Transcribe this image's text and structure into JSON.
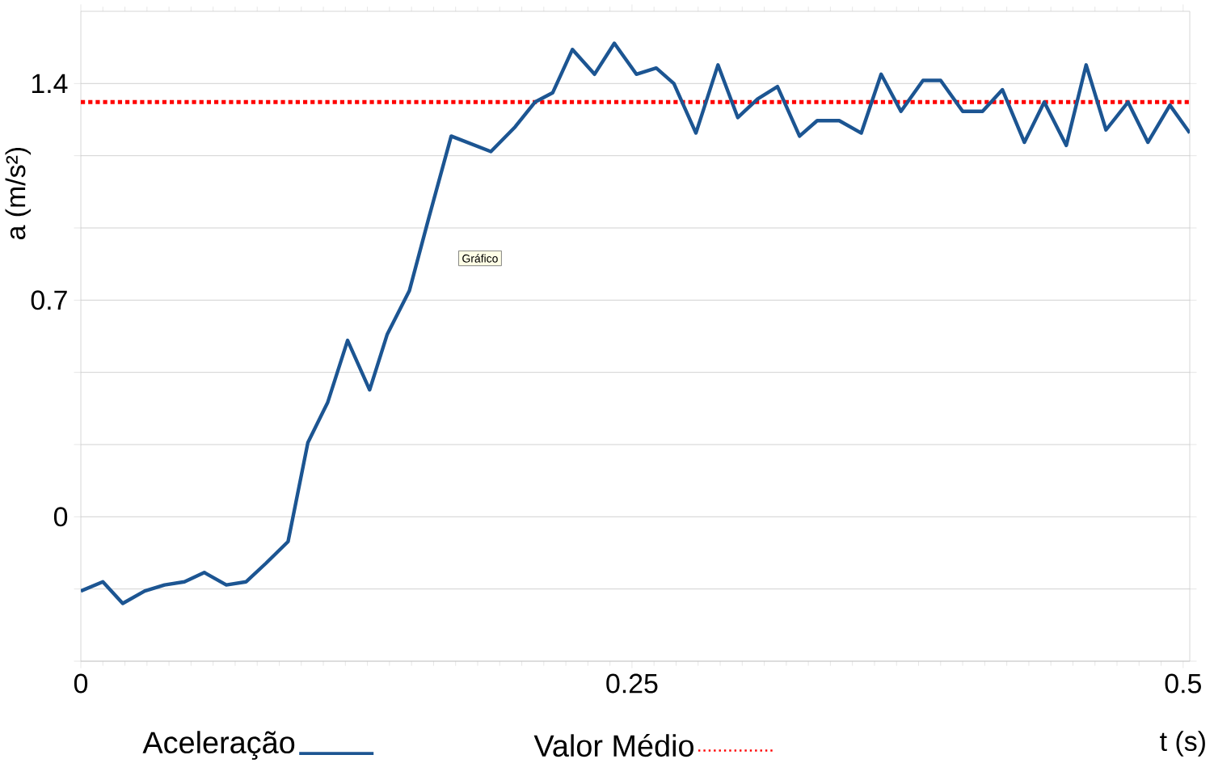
{
  "chart_data": {
    "type": "line",
    "xlabel": "t (s)",
    "ylabel": "a (m/s²)",
    "xlim": [
      0,
      0.503
    ],
    "ylim": [
      -0.4667,
      1.6333
    ],
    "xticks": [
      0,
      0.25,
      0.5
    ],
    "yticks": [
      {
        "value": -0.4667,
        "label": null
      },
      {
        "value": -0.2333,
        "label": null
      },
      0,
      {
        "value": 0.2333,
        "label": null
      },
      {
        "value": 0.4667,
        "label": null
      },
      0.7,
      {
        "value": 0.9333,
        "label": null
      },
      {
        "value": 1.1667,
        "label": null
      },
      1.4
    ],
    "grid": "y",
    "legend": "bottom",
    "line_style": "solid",
    "marker": "none",
    "series": [
      {
        "name": "Aceleração",
        "color": "#1c5592",
        "x": [
          0,
          0.01,
          0.019,
          0.029,
          0.038,
          0.047,
          0.056,
          0.066,
          0.075,
          0.084,
          0.094,
          0.103,
          0.112,
          0.121,
          0.131,
          0.139,
          0.149,
          0.158,
          0.168,
          0.186,
          0.197,
          0.206,
          0.214,
          0.223,
          0.233,
          0.242,
          0.252,
          0.261,
          0.269,
          0.279,
          0.289,
          0.298,
          0.307,
          0.316,
          0.326,
          0.334,
          0.344,
          0.354,
          0.363,
          0.372,
          0.382,
          0.39,
          0.4,
          0.409,
          0.418,
          0.428,
          0.437,
          0.447,
          0.456,
          0.465,
          0.475,
          0.484,
          0.494,
          0.503
        ],
        "values": [
          -0.24,
          -0.21,
          -0.28,
          -0.24,
          -0.22,
          -0.21,
          -0.18,
          -0.22,
          -0.21,
          -0.15,
          -0.08,
          0.24,
          0.37,
          0.57,
          0.41,
          0.59,
          0.73,
          0.97,
          1.23,
          1.18,
          1.26,
          1.34,
          1.37,
          1.51,
          1.43,
          1.53,
          1.43,
          1.45,
          1.4,
          1.24,
          1.46,
          1.29,
          1.35,
          1.39,
          1.23,
          1.28,
          1.28,
          1.24,
          1.43,
          1.31,
          1.41,
          1.41,
          1.31,
          1.31,
          1.38,
          1.21,
          1.34,
          1.2,
          1.46,
          1.25,
          1.34,
          1.21,
          1.33,
          1.24
        ]
      }
    ],
    "ref_lines": [
      {
        "axis": "y",
        "value": 1.34,
        "label": "Valor Médio",
        "color": "#ff0000",
        "line_style": "dotted"
      }
    ],
    "annotations": [
      "Gráfico"
    ]
  }
}
